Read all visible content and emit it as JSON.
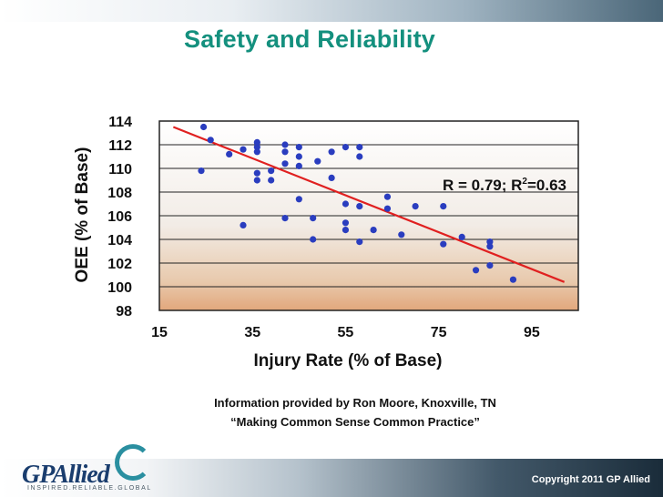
{
  "title": "Safety and Reliability",
  "credit": {
    "line1": "Information provided by Ron Moore, Knoxville, TN",
    "line2": "“Making Common Sense Common Practice”"
  },
  "footer": {
    "logo_text": "GPAllied",
    "tagline": "INSPIRED.RELIABLE.GLOBAL",
    "copyright": "Copyright 2011 GP Allied"
  },
  "colors": {
    "title": "#14907e",
    "points": "#2a3dbf",
    "trendline": "#e02020"
  },
  "chart_data": {
    "type": "scatter",
    "title": "",
    "xlabel": "Injury Rate (% of Base)",
    "ylabel": "OEE (% of Base)",
    "xlim": [
      15,
      105
    ],
    "ylim": [
      98,
      114
    ],
    "xticks": [
      15,
      35,
      55,
      75,
      95
    ],
    "yticks": [
      98,
      100,
      102,
      104,
      106,
      108,
      110,
      112,
      114
    ],
    "grid": "horizontal",
    "annotation": {
      "prefix": "R = 0.79; R",
      "sup": "2",
      "suffix": "=0.63"
    },
    "trendline": {
      "x": [
        18,
        102
      ],
      "y": [
        113.5,
        100.4
      ]
    },
    "points": [
      {
        "x": 24.5,
        "y": 113.5
      },
      {
        "x": 26,
        "y": 112.4
      },
      {
        "x": 30,
        "y": 111.2
      },
      {
        "x": 33,
        "y": 111.6
      },
      {
        "x": 36,
        "y": 111.8
      },
      {
        "x": 36,
        "y": 112.2
      },
      {
        "x": 36,
        "y": 111.4
      },
      {
        "x": 39,
        "y": 109.8
      },
      {
        "x": 36,
        "y": 109.6
      },
      {
        "x": 36,
        "y": 109.0
      },
      {
        "x": 39,
        "y": 109.0
      },
      {
        "x": 24,
        "y": 109.8
      },
      {
        "x": 42,
        "y": 112.0
      },
      {
        "x": 42,
        "y": 111.4
      },
      {
        "x": 42,
        "y": 110.4
      },
      {
        "x": 45,
        "y": 111.8
      },
      {
        "x": 45,
        "y": 111.0
      },
      {
        "x": 45,
        "y": 110.2
      },
      {
        "x": 49,
        "y": 110.6
      },
      {
        "x": 52,
        "y": 111.4
      },
      {
        "x": 55,
        "y": 111.8
      },
      {
        "x": 58,
        "y": 111.8
      },
      {
        "x": 58,
        "y": 111.0
      },
      {
        "x": 52,
        "y": 109.2
      },
      {
        "x": 45,
        "y": 107.4
      },
      {
        "x": 55,
        "y": 107.0
      },
      {
        "x": 58,
        "y": 106.8
      },
      {
        "x": 64,
        "y": 107.6
      },
      {
        "x": 64,
        "y": 106.6
      },
      {
        "x": 70,
        "y": 106.8
      },
      {
        "x": 76,
        "y": 106.8
      },
      {
        "x": 42,
        "y": 105.8
      },
      {
        "x": 48,
        "y": 105.8
      },
      {
        "x": 55,
        "y": 105.4
      },
      {
        "x": 55,
        "y": 104.8
      },
      {
        "x": 61,
        "y": 104.8
      },
      {
        "x": 33,
        "y": 105.2
      },
      {
        "x": 48,
        "y": 104.0
      },
      {
        "x": 58,
        "y": 103.8
      },
      {
        "x": 67,
        "y": 104.4
      },
      {
        "x": 76,
        "y": 103.6
      },
      {
        "x": 80,
        "y": 104.2
      },
      {
        "x": 86,
        "y": 103.8
      },
      {
        "x": 86,
        "y": 103.4
      },
      {
        "x": 86,
        "y": 101.8
      },
      {
        "x": 83,
        "y": 101.4
      },
      {
        "x": 91,
        "y": 100.6
      }
    ]
  }
}
